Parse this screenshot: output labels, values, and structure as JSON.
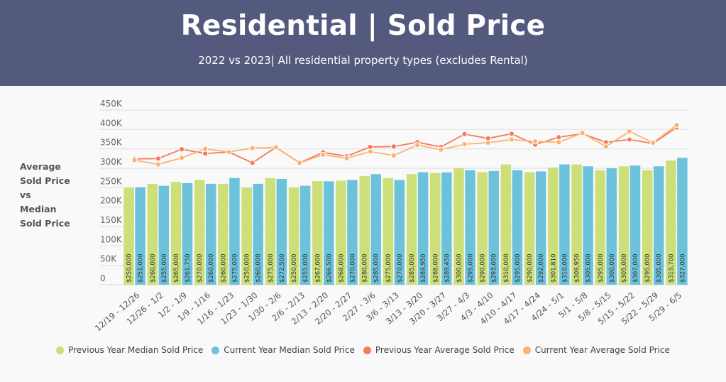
{
  "header": {
    "title": "Residential | Sold Price",
    "subtitle": "2022 vs 2023| All residential property types (excludes Rental)"
  },
  "ylabel_lines": [
    "Average",
    "Sold Price",
    "vs",
    "Median",
    "Sold Price"
  ],
  "colors": {
    "header_bg": "#535a7e",
    "prev_median": "#cddf78",
    "curr_median": "#6cc2db",
    "prev_avg": "#f47a5e",
    "curr_avg": "#f9b372"
  },
  "chart_data": {
    "type": "bar",
    "title": "Residential | Sold Price",
    "subtitle": "2022 vs 2023| All residential property types (excludes Rental)",
    "xlabel": "",
    "ylabel": "Average Sold Price vs Median Sold Price",
    "ylim": [
      0,
      450000
    ],
    "yticks": [
      0,
      50000,
      100000,
      150000,
      200000,
      250000,
      300000,
      350000,
      400000,
      450000
    ],
    "ytick_labels": [
      "0",
      "50K",
      "100K",
      "150K",
      "200K",
      "250K",
      "300K",
      "350K",
      "400K",
      "450K"
    ],
    "grid": true,
    "legend_position": "bottom",
    "categories": [
      "12/19 - 12/26",
      "12/26 - 1/2",
      "1/2 - 1/9",
      "1/9 - 1/16",
      "1/16 - 1/23",
      "1/23 - 1/30",
      "1/30 - 2/6",
      "2/6 - 2/13",
      "2/13 - 2/20",
      "2/20 - 2/27",
      "2/27 - 3/6",
      "3/6 - 3/13",
      "3/13 - 3/20",
      "3/20 - 3/27",
      "3/27 - 4/3",
      "4/3 - 4/10",
      "4/10 - 4/17",
      "4/17 - 4/24",
      "4/24 - 5/1",
      "5/1 - 5/8",
      "5/8 - 5/15",
      "5/15 - 5/22",
      "5/22 - 5/29",
      "5/29 - 6/5"
    ],
    "series": [
      {
        "name": "Previous Year Median Sold Price",
        "kind": "bar",
        "color": "#cddf78",
        "values": [
          250000,
          260000,
          265000,
          270000,
          260000,
          250000,
          275000,
          250000,
          267000,
          268000,
          280000,
          275000,
          285000,
          288000,
          300000,
          290000,
          310000,
          290000,
          301810,
          309950,
          295000,
          305000,
          295000,
          319700
        ],
        "labels": [
          "$250,000",
          "$260,000",
          "$265,000",
          "$270,000",
          "$260,000",
          "$250,000",
          "$275,000",
          "$250,000",
          "$267,000",
          "$268,000",
          "$280,000",
          "$275,000",
          "$285,000",
          "$288,000",
          "$300,000",
          "$290,000",
          "$310,000",
          "$290,000",
          "$301,810",
          "$309,950",
          "$295,000",
          "$305,000",
          "$295,000",
          "$319,700"
        ]
      },
      {
        "name": "Current Year Median Sold Price",
        "kind": "bar",
        "color": "#6cc2db",
        "values": [
          251000,
          255000,
          261750,
          260000,
          275000,
          260000,
          272500,
          255000,
          266500,
          270000,
          285000,
          270000,
          289950,
          289450,
          295000,
          293000,
          295000,
          292000,
          310000,
          305000,
          300000,
          307000,
          305000,
          327000
        ],
        "labels": [
          "$251,000",
          "$255,000",
          "$261,750",
          "$260,000",
          "$275,000",
          "$260,000",
          "$272,500",
          "$255,000",
          "$266,500",
          "$270,000",
          "$285,000",
          "$270,000",
          "$289,950",
          "$289,450",
          "$295,000",
          "$293,000",
          "$295,000",
          "$292,000",
          "$310,000",
          "$305,000",
          "$300,000",
          "$307,000",
          "$305,000",
          "$327,000"
        ]
      },
      {
        "name": "Previous Year Average Sold Price",
        "kind": "line",
        "color": "#f47a5e",
        "values": [
          324000,
          325000,
          349000,
          338000,
          342000,
          314000,
          354000,
          314000,
          341000,
          331000,
          355000,
          356000,
          367000,
          355000,
          388000,
          377000,
          389000,
          361000,
          380000,
          389000,
          367000,
          374000,
          364000,
          405000
        ]
      },
      {
        "name": "Current Year Average Sold Price",
        "kind": "line",
        "color": "#f9b372",
        "values": [
          321000,
          310000,
          327000,
          350000,
          342000,
          352000,
          354000,
          314000,
          335000,
          326000,
          343000,
          333000,
          360000,
          348000,
          362000,
          366000,
          374000,
          369000,
          367000,
          391000,
          356000,
          395000,
          366000,
          411000
        ]
      }
    ]
  },
  "legend": [
    {
      "label": "Previous Year Median Sold Price",
      "color": "#cddf78"
    },
    {
      "label": "Current Year Median Sold Price",
      "color": "#6cc2db"
    },
    {
      "label": "Previous Year Average Sold Price",
      "color": "#f47a5e"
    },
    {
      "label": "Current Year Average Sold Price",
      "color": "#f9b372"
    }
  ]
}
